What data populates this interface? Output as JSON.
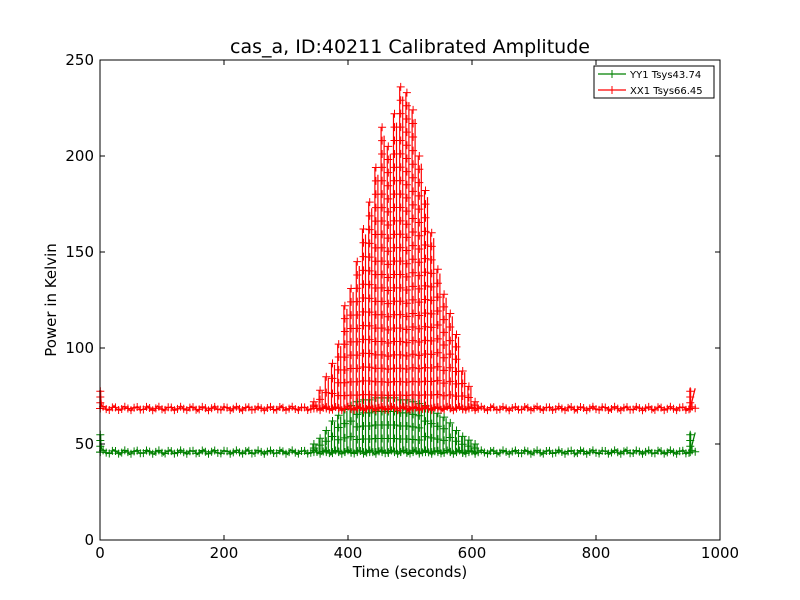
{
  "chart_data": {
    "type": "line",
    "title": "cas_a, ID:40211 Calibrated Amplitude",
    "xlabel": "Time (seconds)",
    "ylabel": "Power in Kelvin",
    "xlim": [
      0,
      1000
    ],
    "ylim": [
      0,
      250
    ],
    "xticks": [
      "0",
      "200",
      "400",
      "600",
      "800",
      "1000"
    ],
    "yticks": [
      "0",
      "50",
      "100",
      "150",
      "200",
      "250"
    ],
    "grid": false,
    "legend_position": "top-right",
    "marker": "plus",
    "series": [
      {
        "name": "YY1 Tsys43.74",
        "color": "#008000",
        "baseline": 45.8,
        "start_value": 55,
        "end_value": 56,
        "x_start": 0,
        "x_end": 960,
        "peak_spikes": [
          {
            "x": 345,
            "top": 50
          },
          {
            "x": 355,
            "top": 53
          },
          {
            "x": 365,
            "top": 57
          },
          {
            "x": 375,
            "top": 62
          },
          {
            "x": 385,
            "top": 65
          },
          {
            "x": 395,
            "top": 68
          },
          {
            "x": 405,
            "top": 70
          },
          {
            "x": 415,
            "top": 72
          },
          {
            "x": 425,
            "top": 73
          },
          {
            "x": 435,
            "top": 73
          },
          {
            "x": 445,
            "top": 74
          },
          {
            "x": 455,
            "top": 74
          },
          {
            "x": 465,
            "top": 74
          },
          {
            "x": 475,
            "top": 74
          },
          {
            "x": 485,
            "top": 73
          },
          {
            "x": 495,
            "top": 73
          },
          {
            "x": 505,
            "top": 72
          },
          {
            "x": 515,
            "top": 71
          },
          {
            "x": 525,
            "top": 70
          },
          {
            "x": 535,
            "top": 68
          },
          {
            "x": 545,
            "top": 66
          },
          {
            "x": 555,
            "top": 64
          },
          {
            "x": 565,
            "top": 61
          },
          {
            "x": 575,
            "top": 57
          },
          {
            "x": 585,
            "top": 54
          },
          {
            "x": 595,
            "top": 52
          },
          {
            "x": 605,
            "top": 50
          }
        ]
      },
      {
        "name": "XX1 Tsys66.45",
        "color": "#ff0000",
        "baseline": 68.5,
        "start_value": 78,
        "end_value": 79,
        "x_start": 0,
        "x_end": 960,
        "peak_spikes": [
          {
            "x": 345,
            "top": 72
          },
          {
            "x": 355,
            "top": 78
          },
          {
            "x": 365,
            "top": 85
          },
          {
            "x": 375,
            "top": 92
          },
          {
            "x": 385,
            "top": 102
          },
          {
            "x": 395,
            "top": 122
          },
          {
            "x": 405,
            "top": 131
          },
          {
            "x": 415,
            "top": 145
          },
          {
            "x": 425,
            "top": 162
          },
          {
            "x": 435,
            "top": 176
          },
          {
            "x": 445,
            "top": 194
          },
          {
            "x": 455,
            "top": 215
          },
          {
            "x": 465,
            "top": 205
          },
          {
            "x": 475,
            "top": 222
          },
          {
            "x": 485,
            "top": 236
          },
          {
            "x": 495,
            "top": 233
          },
          {
            "x": 505,
            "top": 224
          },
          {
            "x": 515,
            "top": 200
          },
          {
            "x": 525,
            "top": 182
          },
          {
            "x": 535,
            "top": 160
          },
          {
            "x": 545,
            "top": 141
          },
          {
            "x": 555,
            "top": 128
          },
          {
            "x": 565,
            "top": 118
          },
          {
            "x": 575,
            "top": 107
          },
          {
            "x": 585,
            "top": 88
          },
          {
            "x": 595,
            "top": 80
          },
          {
            "x": 605,
            "top": 72
          }
        ]
      }
    ]
  }
}
